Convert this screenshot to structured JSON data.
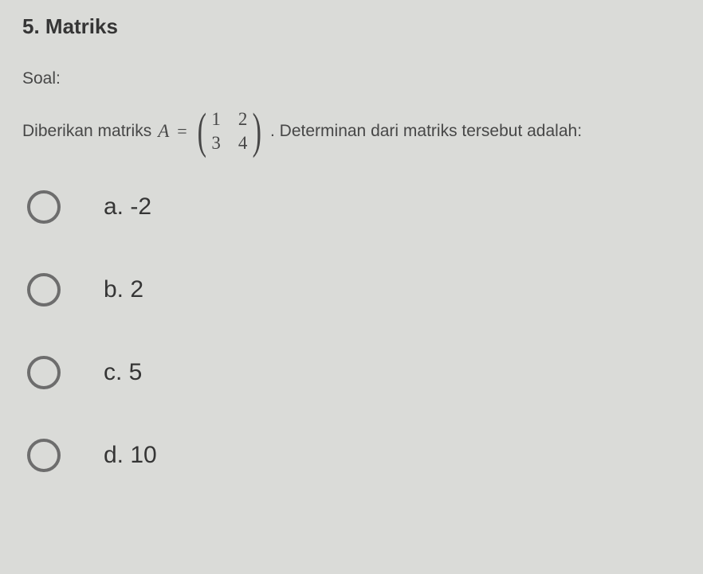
{
  "colors": {
    "background": "#dadbd8",
    "text_dark": "#353535",
    "text_body": "#474747",
    "radio_border": "#6d6d6d"
  },
  "title": "5. Matriks",
  "soal_label": "Soal:",
  "question": {
    "pre_text": "Diberikan matriks",
    "var": "A",
    "equals": "=",
    "matrix": {
      "r1c1": "1",
      "r1c2": "2",
      "r2c1": "3",
      "r2c2": "4"
    },
    "post_text": ". Determinan dari matriks tersebut adalah:"
  },
  "options": [
    {
      "label": "a. -2"
    },
    {
      "label": "b. 2"
    },
    {
      "label": "c. 5"
    },
    {
      "label": "d. 10"
    }
  ]
}
